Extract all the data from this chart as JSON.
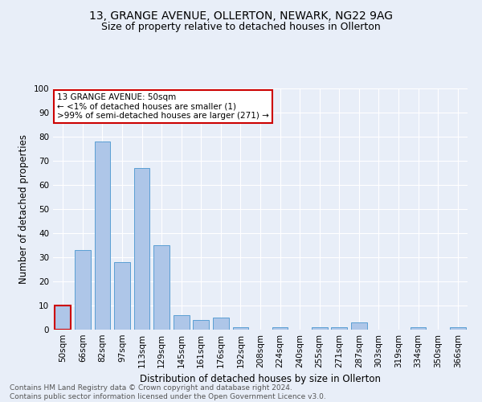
{
  "title1": "13, GRANGE AVENUE, OLLERTON, NEWARK, NG22 9AG",
  "title2": "Size of property relative to detached houses in Ollerton",
  "xlabel": "Distribution of detached houses by size in Ollerton",
  "ylabel": "Number of detached properties",
  "categories": [
    "50sqm",
    "66sqm",
    "82sqm",
    "97sqm",
    "113sqm",
    "129sqm",
    "145sqm",
    "161sqm",
    "176sqm",
    "192sqm",
    "208sqm",
    "224sqm",
    "240sqm",
    "255sqm",
    "271sqm",
    "287sqm",
    "303sqm",
    "319sqm",
    "334sqm",
    "350sqm",
    "366sqm"
  ],
  "values": [
    10,
    33,
    78,
    28,
    67,
    35,
    6,
    4,
    5,
    1,
    0,
    1,
    0,
    1,
    1,
    3,
    0,
    0,
    1,
    0,
    1
  ],
  "bar_color": "#aec6e8",
  "bar_edge_color": "#5a9fd4",
  "highlight_bar_index": 0,
  "highlight_bar_edge_color": "#cc0000",
  "annotation_box_text": "13 GRANGE AVENUE: 50sqm\n← <1% of detached houses are smaller (1)\n>99% of semi-detached houses are larger (271) →",
  "annotation_box_color": "#ffffff",
  "annotation_box_edge_color": "#cc0000",
  "ylim": [
    0,
    100
  ],
  "yticks": [
    0,
    10,
    20,
    30,
    40,
    50,
    60,
    70,
    80,
    90,
    100
  ],
  "footer_text": "Contains HM Land Registry data © Crown copyright and database right 2024.\nContains public sector information licensed under the Open Government Licence v3.0.",
  "bg_color": "#e8eef8",
  "plot_bg_color": "#e8eef8",
  "grid_color": "#ffffff",
  "title_fontsize": 10,
  "subtitle_fontsize": 9,
  "axis_label_fontsize": 8.5,
  "tick_fontsize": 7.5,
  "annotation_fontsize": 7.5,
  "footer_fontsize": 6.5
}
